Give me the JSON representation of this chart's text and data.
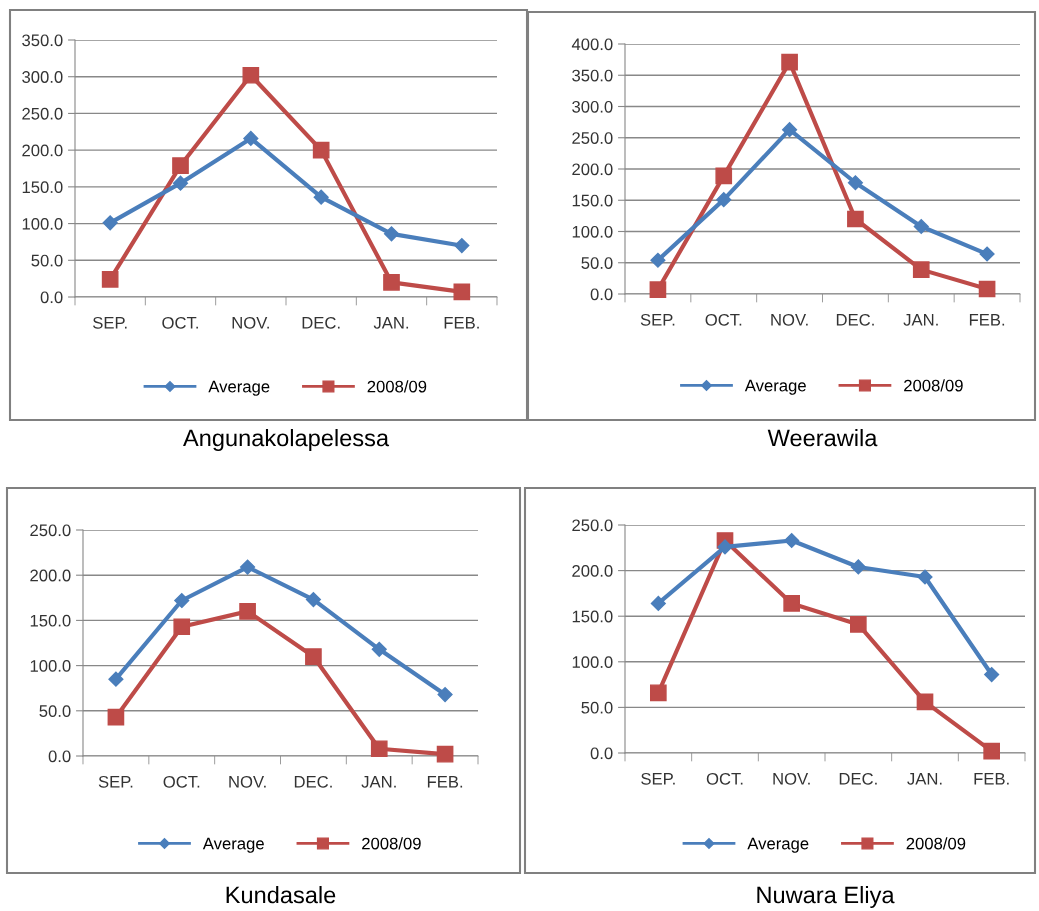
{
  "chart_data": [
    {
      "type": "line",
      "title": "Angunakolapelessa",
      "categories": [
        "SEP.",
        "OCT.",
        "NOV.",
        "DEC.",
        "JAN.",
        "FEB."
      ],
      "ylim": [
        0,
        350
      ],
      "yticks": [
        {
          "value": 0,
          "label": "0.0"
        },
        {
          "value": 50,
          "label": "50.0"
        },
        {
          "value": 100,
          "label": "100.0"
        },
        {
          "value": 150,
          "label": "150.0"
        },
        {
          "value": 200,
          "label": "200.0"
        },
        {
          "value": 250,
          "label": "250.0"
        },
        {
          "value": 300,
          "label": "300.0"
        },
        {
          "value": 350,
          "label": "350.0"
        }
      ],
      "grid": "y",
      "legend": "bottom",
      "series": [
        {
          "name": "Average",
          "color": "#4a7ebb",
          "marker": "diamond",
          "values": [
            101,
            155,
            216,
            136,
            86,
            70
          ]
        },
        {
          "name": "2008/09",
          "color": "#be4b48",
          "marker": "square",
          "values": [
            24,
            179,
            302,
            200,
            20,
            7
          ]
        }
      ]
    },
    {
      "type": "line",
      "title": "Weerawila",
      "categories": [
        "SEP.",
        "OCT.",
        "NOV.",
        "DEC.",
        "JAN.",
        "FEB."
      ],
      "ylim": [
        0,
        400
      ],
      "yticks": [
        {
          "value": 0,
          "label": "0.0"
        },
        {
          "value": 50,
          "label": "50.0"
        },
        {
          "value": 100,
          "label": "100.0"
        },
        {
          "value": 150,
          "label": "150.0"
        },
        {
          "value": 200,
          "label": "200.0"
        },
        {
          "value": 250,
          "label": "250.0"
        },
        {
          "value": 300,
          "label": "300.0"
        },
        {
          "value": 350,
          "label": "350.0"
        },
        {
          "value": 400,
          "label": "400.0"
        }
      ],
      "grid": "y",
      "legend": "bottom",
      "series": [
        {
          "name": "Average",
          "color": "#4a7ebb",
          "marker": "diamond",
          "values": [
            54,
            151,
            263,
            178,
            108,
            64
          ]
        },
        {
          "name": "2008/09",
          "color": "#be4b48",
          "marker": "square",
          "values": [
            7,
            189,
            371,
            120,
            39,
            8
          ]
        }
      ]
    },
    {
      "type": "line",
      "title": "Kundasale",
      "categories": [
        "SEP.",
        "OCT.",
        "NOV.",
        "DEC.",
        "JAN.",
        "FEB."
      ],
      "ylim": [
        0,
        250
      ],
      "yticks": [
        {
          "value": 0,
          "label": "0.0"
        },
        {
          "value": 50,
          "label": "50.0"
        },
        {
          "value": 100,
          "label": "100.0"
        },
        {
          "value": 150,
          "label": "150.0"
        },
        {
          "value": 200,
          "label": "200.0"
        },
        {
          "value": 250,
          "label": "250.0"
        }
      ],
      "grid": "y",
      "legend": "bottom",
      "series": [
        {
          "name": "Average",
          "color": "#4a7ebb",
          "marker": "diamond",
          "values": [
            85,
            172,
            209,
            173,
            118,
            68
          ]
        },
        {
          "name": "2008/09",
          "color": "#be4b48",
          "marker": "square",
          "values": [
            43,
            143,
            160,
            110,
            8,
            2
          ]
        }
      ]
    },
    {
      "type": "line",
      "title": "Nuwara Eliya",
      "categories": [
        "SEP.",
        "OCT.",
        "NOV.",
        "DEC.",
        "JAN.",
        "FEB."
      ],
      "ylim": [
        0,
        250
      ],
      "yticks": [
        {
          "value": 0,
          "label": "0.0"
        },
        {
          "value": 50,
          "label": "50.0"
        },
        {
          "value": 100,
          "label": "100.0"
        },
        {
          "value": 150,
          "label": "150.0"
        },
        {
          "value": 200,
          "label": "200.0"
        },
        {
          "value": 250,
          "label": "250.0"
        }
      ],
      "grid": "y",
      "legend": "bottom",
      "series": [
        {
          "name": "Average",
          "color": "#4a7ebb",
          "marker": "diamond",
          "values": [
            164,
            226,
            233,
            204,
            193,
            86
          ]
        },
        {
          "name": "2008/09",
          "color": "#be4b48",
          "marker": "square",
          "values": [
            66,
            233,
            164,
            141,
            56,
            2
          ]
        }
      ]
    }
  ]
}
